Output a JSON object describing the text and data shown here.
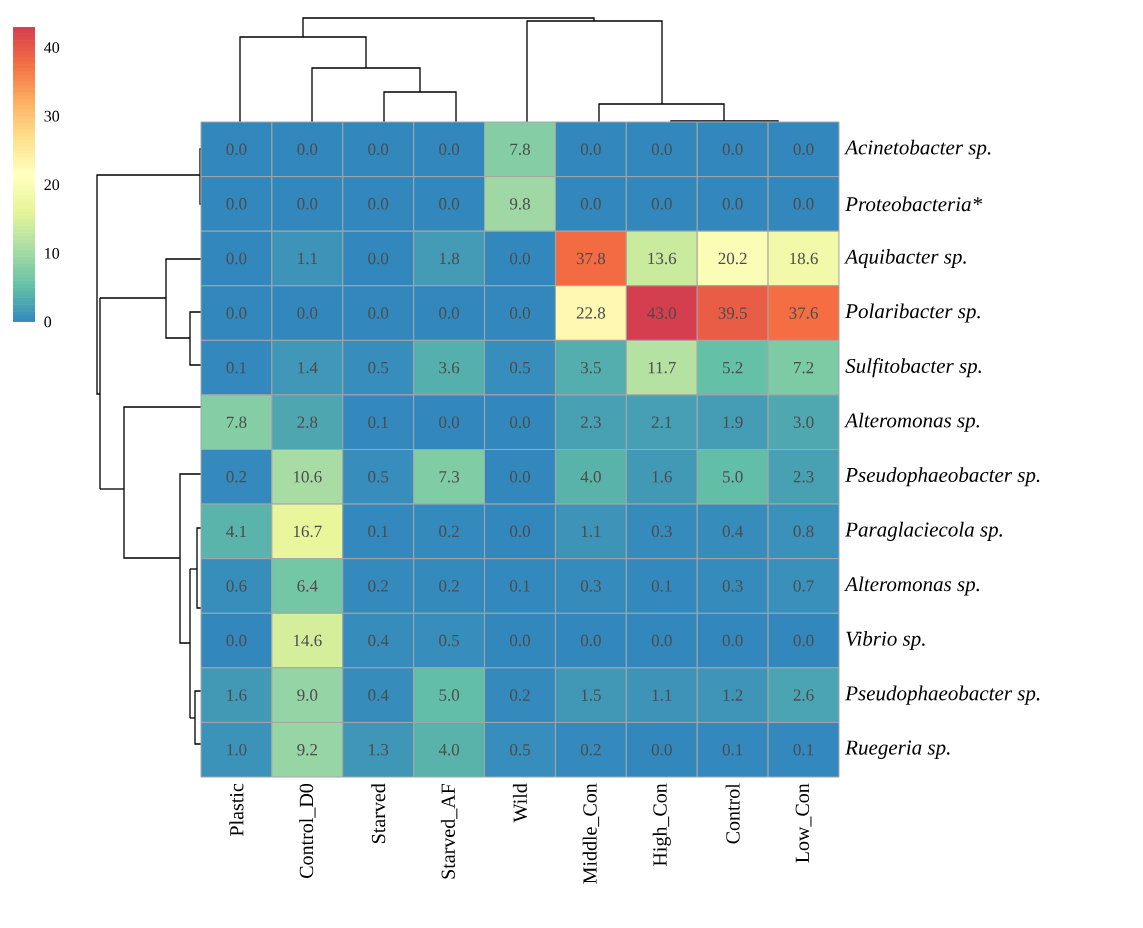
{
  "chart_data": {
    "type": "heatmap",
    "categories": [
      "Plastic",
      "Control_D0",
      "Starved",
      "Starved_AF",
      "Wild",
      "Middle_Con",
      "High_Con",
      "Control",
      "Low_Con"
    ],
    "y_categories": [
      "Acinetobacter sp.",
      "Proteobacteria*",
      "Aquibacter sp.",
      "Polaribacter sp.",
      "Sulfitobacter sp.",
      "Alteromonas sp.",
      "Pseudophaeobacter sp.",
      "Paraglaciecola sp.",
      "Alteromonas sp.",
      "Vibrio sp.",
      "Pseudophaeobacter sp.",
      "Ruegeria sp."
    ],
    "cells": [
      [
        0.0,
        0.0,
        0.0,
        0.0,
        7.8,
        0.0,
        0.0,
        0.0,
        0.0
      ],
      [
        0.0,
        0.0,
        0.0,
        0.0,
        9.8,
        0.0,
        0.0,
        0.0,
        0.0
      ],
      [
        0.0,
        1.1,
        0.0,
        1.8,
        0.0,
        37.8,
        13.6,
        20.2,
        18.6
      ],
      [
        0.0,
        0.0,
        0.0,
        0.0,
        0.0,
        22.8,
        43.0,
        39.5,
        37.6
      ],
      [
        0.1,
        1.4,
        0.5,
        3.6,
        0.5,
        3.5,
        11.7,
        5.2,
        7.2
      ],
      [
        7.8,
        2.8,
        0.1,
        0.0,
        0.0,
        2.3,
        2.1,
        1.9,
        3.0
      ],
      [
        0.2,
        10.6,
        0.5,
        7.3,
        0.0,
        4.0,
        1.6,
        5.0,
        2.3
      ],
      [
        4.1,
        16.7,
        0.1,
        0.2,
        0.0,
        1.1,
        0.3,
        0.4,
        0.8
      ],
      [
        0.6,
        6.4,
        0.2,
        0.2,
        0.1,
        0.3,
        0.1,
        0.3,
        0.7
      ],
      [
        0.0,
        14.6,
        0.4,
        0.5,
        0.0,
        0.0,
        0.0,
        0.0,
        0.0
      ],
      [
        1.6,
        9.0,
        0.4,
        5.0,
        0.2,
        1.5,
        1.1,
        1.2,
        2.6
      ],
      [
        1.0,
        9.2,
        1.3,
        4.0,
        0.5,
        0.2,
        0.0,
        0.1,
        0.1
      ]
    ],
    "cell_labels": [
      [
        "0.0",
        "0.0",
        "0.0",
        "0.0",
        "7.8",
        "0.0",
        "0.0",
        "0.0",
        "0.0"
      ],
      [
        "0.0",
        "0.0",
        "0.0",
        "0.0",
        "9.8",
        "0.0",
        "0.0",
        "0.0",
        "0.0"
      ],
      [
        "0.0",
        "1.1",
        "0.0",
        "1.8",
        "0.0",
        "37.8",
        "13.6",
        "20.2",
        "18.6"
      ],
      [
        "0.0",
        "0.0",
        "0.0",
        "0.0",
        "0.0",
        "22.8",
        "43.0",
        "39.5",
        "37.6"
      ],
      [
        "0.1",
        "1.4",
        "0.5",
        "3.6",
        "0.5",
        "3.5",
        "11.7",
        "5.2",
        "7.2"
      ],
      [
        "7.8",
        "2.8",
        "0.1",
        "0.0",
        "0.0",
        "2.3",
        "2.1",
        "1.9",
        "3.0"
      ],
      [
        "0.2",
        "10.6",
        "0.5",
        "7.3",
        "0.0",
        "4.0",
        "1.6",
        "5.0",
        "2.3"
      ],
      [
        "4.1",
        "16.7",
        "0.1",
        "0.2",
        "0.0",
        "1.1",
        "0.3",
        "0.4",
        "0.8"
      ],
      [
        "0.6",
        "6.4",
        "0.2",
        "0.2",
        "0.1",
        "0.3",
        "0.1",
        "0.3",
        "0.7"
      ],
      [
        "0.0",
        "14.6",
        "0.4",
        "0.5",
        "0.0",
        "0.0",
        "0.0",
        "0.0",
        "0.0"
      ],
      [
        "1.6",
        "9.0",
        "0.4",
        "5.0",
        "0.2",
        "1.5",
        "1.1",
        "1.2",
        "2.6"
      ],
      [
        "1.0",
        "9.2",
        "1.3",
        "4.0",
        "0.5",
        "0.2",
        "0.0",
        "0.1",
        "0.1"
      ]
    ],
    "data_labels": true,
    "clim": [
      0,
      43
    ],
    "cticks": [
      0,
      10,
      20,
      30,
      40
    ]
  }
}
